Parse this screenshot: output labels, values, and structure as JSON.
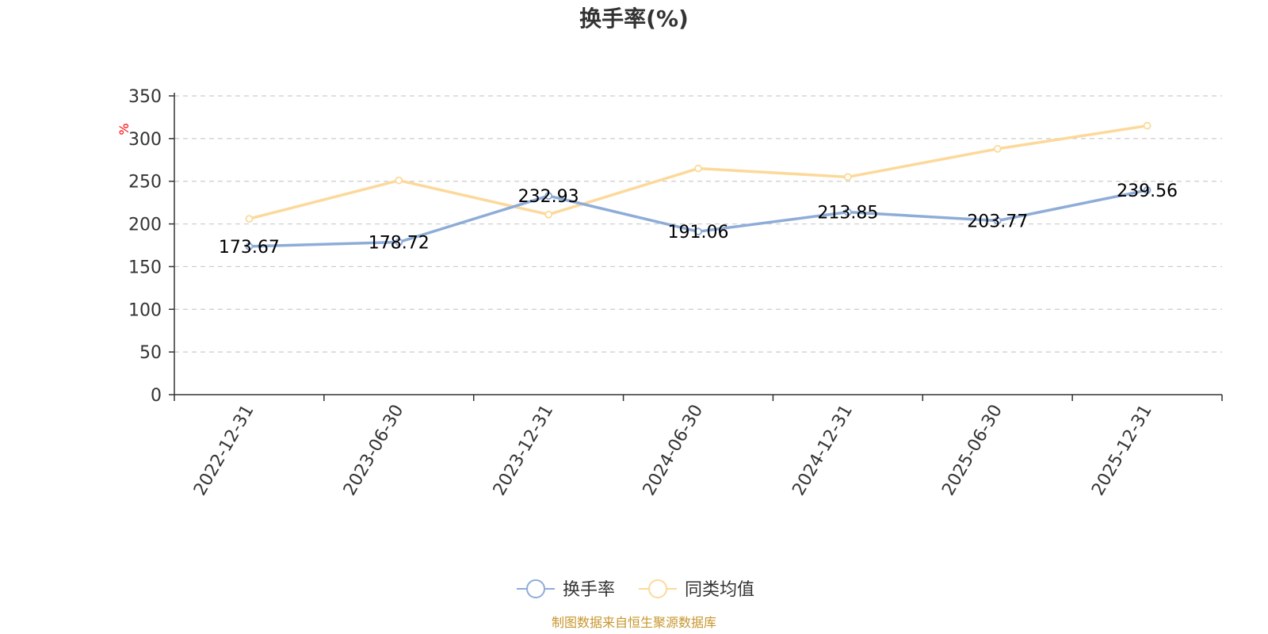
{
  "chart_data": {
    "type": "line",
    "title": "换手率(%)",
    "ylabel": "%",
    "categories": [
      "2022-12-31",
      "2023-06-30",
      "2023-12-31",
      "2024-06-30",
      "2024-12-31",
      "2025-06-30",
      "2025-12-31"
    ],
    "series": [
      {
        "name": "换手率",
        "color": "#8eacd8",
        "values": [
          173.67,
          178.72,
          232.93,
          191.06,
          213.85,
          203.77,
          239.56
        ],
        "labels": [
          "173.67",
          "178.72",
          "232.93",
          "191.06",
          "213.85",
          "203.77",
          "239.56"
        ]
      },
      {
        "name": "同类均值",
        "color": "#fcd99a",
        "values": [
          206,
          251,
          211,
          265,
          255,
          288,
          315
        ]
      }
    ],
    "ylim": [
      0,
      350
    ],
    "yticks": [
      0,
      50,
      100,
      150,
      200,
      250,
      300,
      350
    ],
    "grid": true,
    "legend_position": "bottom-center",
    "unit_color": "#ff0000"
  },
  "footer": {
    "source_text": "制图数据来自恒生聚源数据库",
    "source_color": "#c8962e"
  }
}
